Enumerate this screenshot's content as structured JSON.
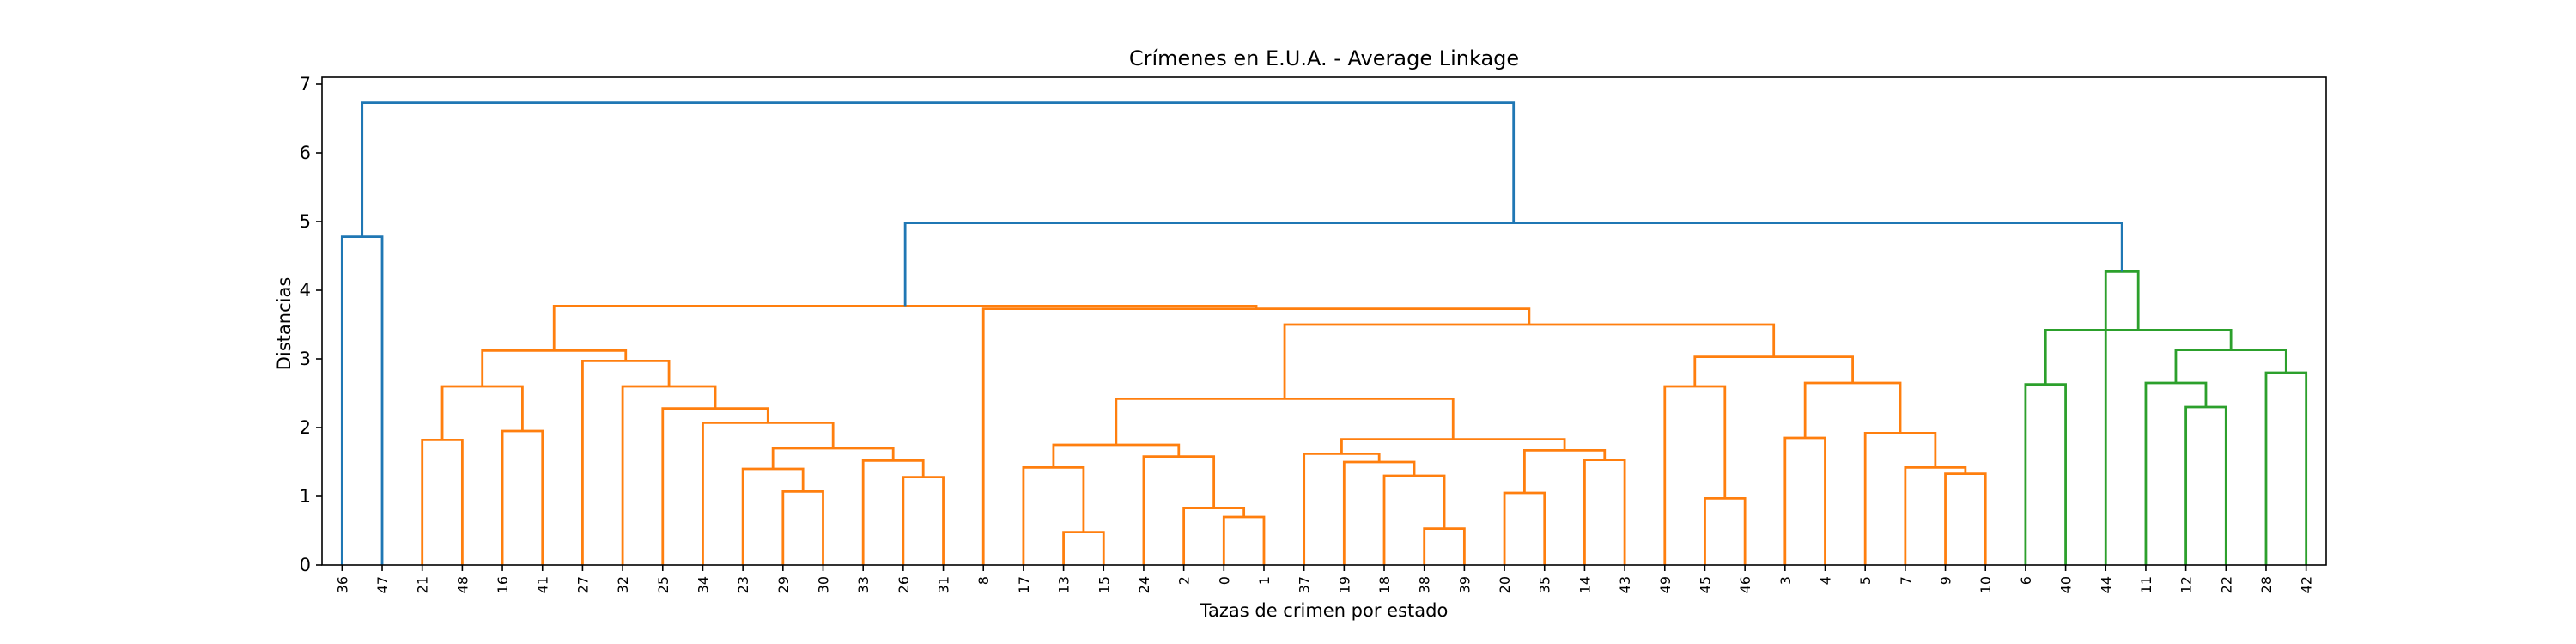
{
  "chart_data": {
    "type": "dendrogram",
    "title": "Crímenes en E.U.A. - Average Linkage",
    "xlabel": "Tazas de crimen por estado",
    "ylabel": "Distancias",
    "ylim": [
      0,
      7.1
    ],
    "yticks": [
      0,
      1,
      2,
      3,
      4,
      5,
      6,
      7
    ],
    "leaves": [
      "36",
      "47",
      "21",
      "48",
      "16",
      "41",
      "27",
      "32",
      "25",
      "34",
      "23",
      "29",
      "30",
      "33",
      "26",
      "31",
      "8",
      "17",
      "13",
      "15",
      "24",
      "2",
      "0",
      "1",
      "37",
      "19",
      "18",
      "38",
      "39",
      "20",
      "35",
      "14",
      "43",
      "49",
      "45",
      "46",
      "3",
      "4",
      "5",
      "7",
      "9",
      "10",
      "6",
      "40",
      "44",
      "11",
      "12",
      "22",
      "28",
      "42"
    ],
    "colors": {
      "above_threshold": "#1f77b4",
      "cluster_1": "#ff7f0e",
      "cluster_2": "#2ca02c"
    },
    "merges": [
      {
        "a": "36",
        "b": "47",
        "height": 4.78,
        "color": "#1f77b4"
      },
      {
        "a": "21",
        "b": "48",
        "height": 1.82,
        "color": "#ff7f0e"
      },
      {
        "a": "16",
        "b": "41",
        "height": 1.95,
        "color": "#ff7f0e"
      },
      {
        "a": "29",
        "b": "30",
        "height": 1.07,
        "color": "#ff7f0e"
      },
      {
        "a": "23",
        "b": "m4",
        "height": 1.4,
        "color": "#ff7f0e"
      },
      {
        "a": "26",
        "b": "31",
        "height": 1.28,
        "color": "#ff7f0e"
      },
      {
        "a": "33",
        "b": "m6",
        "height": 1.52,
        "color": "#ff7f0e"
      },
      {
        "a": "m5",
        "b": "m7",
        "height": 1.7,
        "color": "#ff7f0e"
      },
      {
        "a": "34",
        "b": "m8",
        "height": 2.07,
        "color": "#ff7f0e"
      },
      {
        "a": "25",
        "b": "m9",
        "height": 2.28,
        "color": "#ff7f0e"
      },
      {
        "a": "32",
        "b": "m10",
        "height": 2.6,
        "color": "#ff7f0e"
      },
      {
        "a": "27",
        "b": "m11",
        "height": 2.97,
        "color": "#ff7f0e"
      },
      {
        "a": "m2",
        "b": "m3",
        "height": 2.6,
        "color": "#ff7f0e"
      },
      {
        "a": "m13",
        "b": "m12",
        "height": 3.12,
        "color": "#ff7f0e"
      },
      {
        "a": "13",
        "b": "15",
        "height": 0.48,
        "color": "#ff7f0e"
      },
      {
        "a": "17",
        "b": "m15",
        "height": 1.42,
        "color": "#ff7f0e"
      },
      {
        "a": "0",
        "b": "1",
        "height": 0.7,
        "color": "#ff7f0e"
      },
      {
        "a": "2",
        "b": "m17",
        "height": 0.83,
        "color": "#ff7f0e"
      },
      {
        "a": "24",
        "b": "m18",
        "height": 1.58,
        "color": "#ff7f0e"
      },
      {
        "a": "m16",
        "b": "m19",
        "height": 1.75,
        "color": "#ff7f0e"
      },
      {
        "a": "38",
        "b": "39",
        "height": 0.53,
        "color": "#ff7f0e"
      },
      {
        "a": "18",
        "b": "m21",
        "height": 1.3,
        "color": "#ff7f0e"
      },
      {
        "a": "19",
        "b": "m22",
        "height": 1.5,
        "color": "#ff7f0e"
      },
      {
        "a": "37",
        "b": "m23",
        "height": 1.62,
        "color": "#ff7f0e"
      },
      {
        "a": "20",
        "b": "35",
        "height": 1.05,
        "color": "#ff7f0e"
      },
      {
        "a": "14",
        "b": "43",
        "height": 1.53,
        "color": "#ff7f0e"
      },
      {
        "a": "m25",
        "b": "m26",
        "height": 1.67,
        "color": "#ff7f0e"
      },
      {
        "a": "m24",
        "b": "m27",
        "height": 1.83,
        "color": "#ff7f0e"
      },
      {
        "a": "m20",
        "b": "m28",
        "height": 2.42,
        "color": "#ff7f0e"
      },
      {
        "a": "45",
        "b": "46",
        "height": 0.97,
        "color": "#ff7f0e"
      },
      {
        "a": "49",
        "b": "m30",
        "height": 2.6,
        "color": "#ff7f0e"
      },
      {
        "a": "3",
        "b": "4",
        "height": 1.85,
        "color": "#ff7f0e"
      },
      {
        "a": "9",
        "b": "10",
        "height": 1.33,
        "color": "#ff7f0e"
      },
      {
        "a": "7",
        "b": "m33",
        "height": 1.42,
        "color": "#ff7f0e"
      },
      {
        "a": "5",
        "b": "m34",
        "height": 1.92,
        "color": "#ff7f0e"
      },
      {
        "a": "m32",
        "b": "m35",
        "height": 2.65,
        "color": "#ff7f0e"
      },
      {
        "a": "m31",
        "b": "m36",
        "height": 3.03,
        "color": "#ff7f0e"
      },
      {
        "a": "m29",
        "b": "m37",
        "height": 3.5,
        "color": "#ff7f0e"
      },
      {
        "a": "8",
        "b": "m38",
        "height": 3.73,
        "color": "#ff7f0e"
      },
      {
        "a": "m14",
        "b": "m39",
        "height": 3.77,
        "color": "#ff7f0e"
      },
      {
        "a": "6",
        "b": "40",
        "height": 2.63,
        "color": "#2ca02c"
      },
      {
        "a": "12",
        "b": "22",
        "height": 2.3,
        "color": "#2ca02c"
      },
      {
        "a": "11",
        "b": "m42",
        "height": 2.65,
        "color": "#2ca02c"
      },
      {
        "a": "28",
        "b": "42",
        "height": 2.8,
        "color": "#2ca02c"
      },
      {
        "a": "m43",
        "b": "m44",
        "height": 3.13,
        "color": "#2ca02c"
      },
      {
        "a": "m41",
        "b": "m45",
        "height": 3.42,
        "color": "#2ca02c"
      },
      {
        "a": "44",
        "b": "m46",
        "height": 4.27,
        "color": "#2ca02c"
      },
      {
        "a": "m40",
        "b": "m47",
        "height": 4.98,
        "color": "#1f77b4"
      },
      {
        "a": "m1",
        "b": "m48",
        "height": 6.73,
        "color": "#1f77b4"
      }
    ]
  }
}
